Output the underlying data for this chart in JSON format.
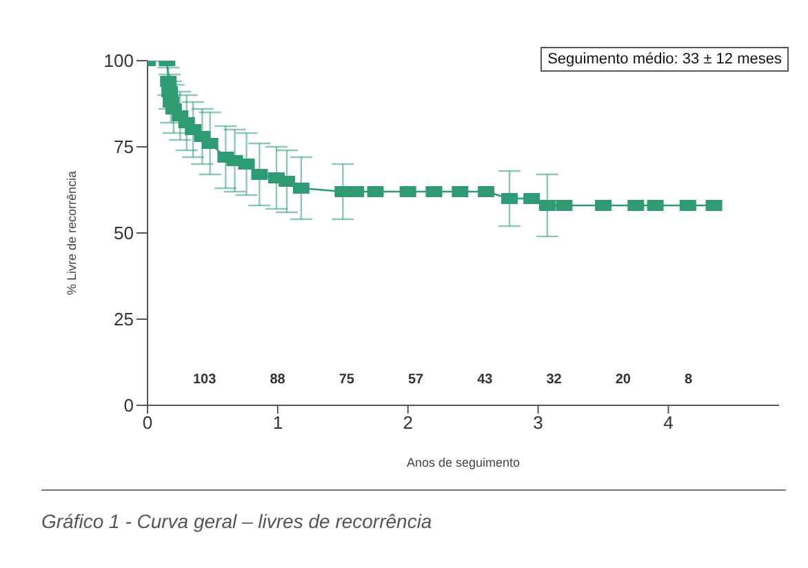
{
  "chart_data": {
    "type": "line",
    "title": "Gráfico 1 - Curva geral – livres de recorrência",
    "xlabel": "Anos de seguimento",
    "ylabel": "% Livre de recorrência",
    "x": [
      0,
      0.15,
      0.16,
      0.17,
      0.18,
      0.2,
      0.25,
      0.3,
      0.35,
      0.42,
      0.48,
      0.6,
      0.67,
      0.76,
      0.86,
      0.99,
      1.07,
      1.18,
      1.5,
      1.6,
      1.75,
      2.0,
      2.2,
      2.4,
      2.6,
      2.78,
      2.95,
      3.07,
      3.2,
      3.5,
      3.75,
      3.9,
      4.15,
      4.35
    ],
    "series": [
      {
        "color": "#2e9b72",
        "values": [
          100,
          100,
          94,
          91,
          88,
          86,
          84,
          82,
          80,
          78,
          76,
          72,
          71,
          70,
          67,
          66,
          65,
          63,
          62,
          62,
          62,
          62,
          62,
          62,
          62,
          60,
          60,
          58,
          58,
          58,
          58,
          58,
          58,
          58
        ],
        "errors": [
          null,
          null,
          4,
          5,
          6,
          7,
          7,
          8,
          8,
          8,
          9,
          9,
          9,
          9,
          9,
          9,
          9,
          9,
          8,
          null,
          null,
          null,
          null,
          null,
          null,
          8,
          null,
          9,
          null,
          null,
          null,
          null,
          null,
          null
        ]
      }
    ],
    "xlim": [
      0,
      4.85
    ],
    "xticks": [
      0,
      1,
      2,
      3,
      4
    ],
    "ylim": [
      0,
      100
    ],
    "yticks": [
      0,
      25,
      50,
      75,
      100
    ],
    "marker": "square",
    "grid": false,
    "legend": false,
    "annotations": [
      "Seguimento médio: 33 ± 12 meses",
      "103",
      "88",
      "75",
      "57",
      "43",
      "32",
      "20",
      "8"
    ]
  }
}
